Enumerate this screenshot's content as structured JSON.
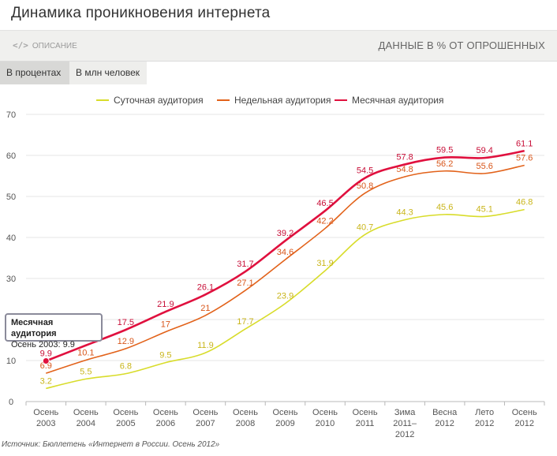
{
  "page": {
    "title": "Динамика проникновения интернета",
    "description_link": "ОПИСАНИЕ",
    "description_icon": "code-icon",
    "units_label": "ДАННЫЕ В % ОТ ОПРОШЕННЫХ",
    "tabs": [
      {
        "label": "В процентах",
        "active": true
      },
      {
        "label": "В млн человек",
        "active": false
      }
    ],
    "source": "Источник: Бюллетень «Интернет в России. Осень 2012»",
    "tooltip": {
      "title": "Месячная аудитория",
      "text": "Осень 2003: 9.9"
    }
  },
  "chart_data": {
    "type": "line",
    "categories": [
      [
        "Осень",
        "2003"
      ],
      [
        "Осень",
        "2004"
      ],
      [
        "Осень",
        "2005"
      ],
      [
        "Осень",
        "2006"
      ],
      [
        "Осень",
        "2007"
      ],
      [
        "Осень",
        "2008"
      ],
      [
        "Осень",
        "2009"
      ],
      [
        "Осень",
        "2010"
      ],
      [
        "Осень",
        "2011"
      ],
      [
        "Зима",
        "2011–",
        "2012"
      ],
      [
        "Весна",
        "2012"
      ],
      [
        "Лето",
        "2012"
      ],
      [
        "Осень",
        "2012"
      ]
    ],
    "ylim": [
      0,
      70
    ],
    "yticks": [
      0,
      10,
      20,
      30,
      40,
      50,
      60,
      70
    ],
    "grid": true,
    "legend": "top-center",
    "series": [
      {
        "name": "Суточная аудитория",
        "color": "#d8dc2a",
        "values": [
          3.2,
          5.5,
          6.8,
          9.5,
          11.9,
          17.7,
          23.9,
          31.9,
          40.7,
          44.3,
          45.6,
          45.1,
          46.8
        ]
      },
      {
        "name": "Недельная аудитория",
        "color": "#e2621a",
        "values": [
          6.9,
          10.1,
          12.9,
          17,
          21,
          27.1,
          34.6,
          42.2,
          50.8,
          54.8,
          56.2,
          55.6,
          57.6
        ]
      },
      {
        "name": "Месячная аудитория",
        "color": "#e0103e",
        "values": [
          9.9,
          13.7,
          17.5,
          21.9,
          26.1,
          31.7,
          39.2,
          46.5,
          54.5,
          57.8,
          59.5,
          59.4,
          61.1
        ]
      }
    ],
    "highlight": {
      "series": 2,
      "index": 0
    }
  }
}
